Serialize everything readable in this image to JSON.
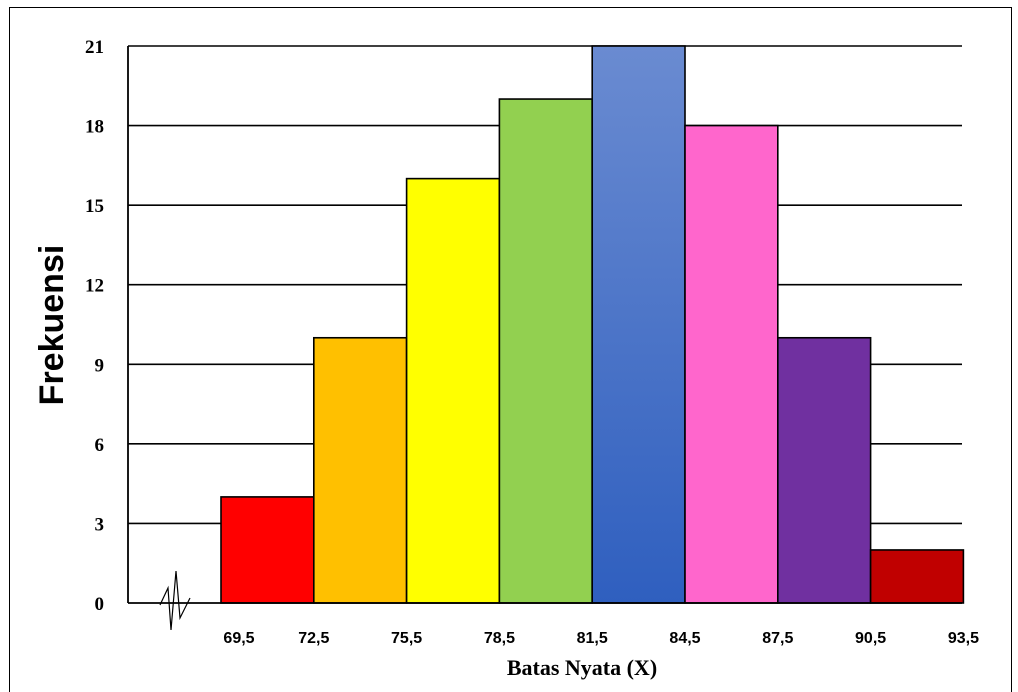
{
  "chart_data": {
    "type": "bar",
    "subtype": "histogram",
    "xlabel": "Batas Nyata (X)",
    "ylabel": "Frekuensi",
    "bin_edges": [
      69.5,
      72.5,
      75.5,
      78.5,
      81.5,
      84.5,
      87.5,
      90.5,
      93.5
    ],
    "x_tick_labels": [
      "69,5",
      "72,5",
      "75,5",
      "78,5",
      "81,5",
      "84,5",
      "87,5",
      "90,5",
      "93,5"
    ],
    "values": [
      4,
      10,
      16,
      19,
      21,
      18,
      10,
      2
    ],
    "colors": [
      "#ff0000",
      "#ffc000",
      "#ffff00",
      "#92d050",
      "#4472c4",
      "#ff66cc",
      "#7030a0",
      "#c00000"
    ],
    "ylim": [
      0,
      21
    ],
    "y_ticks": [
      0,
      3,
      6,
      9,
      12,
      15,
      18,
      21
    ],
    "grid": true,
    "axis_break": true
  }
}
